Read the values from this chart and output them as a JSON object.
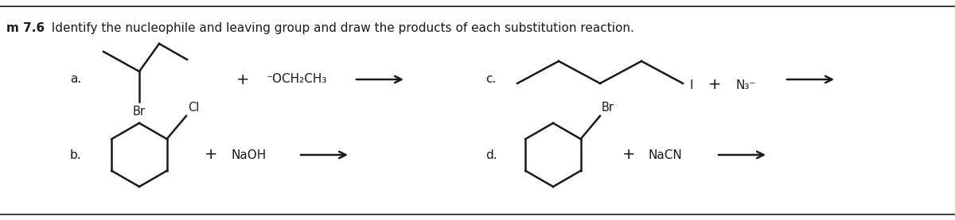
{
  "title_bold": "m 7.6",
  "title_text": "  Identify the nucleophile and leaving group and draw the products of each substitution reaction.",
  "bg_color": "#ffffff",
  "line_color": "#1a1a1a",
  "label_a": "a.",
  "label_b": "b.",
  "label_c": "c.",
  "label_d": "d.",
  "reagent_a": "⁻OCH₂CH₃",
  "reagent_c_part1": "I",
  "reagent_c_part2": "N₃⁻",
  "reagent_b": "NaOH",
  "reagent_d": "NaCN",
  "plus_sign": "+",
  "br_label": "Br",
  "cl_label": "Cl",
  "br_label_d": "Br"
}
